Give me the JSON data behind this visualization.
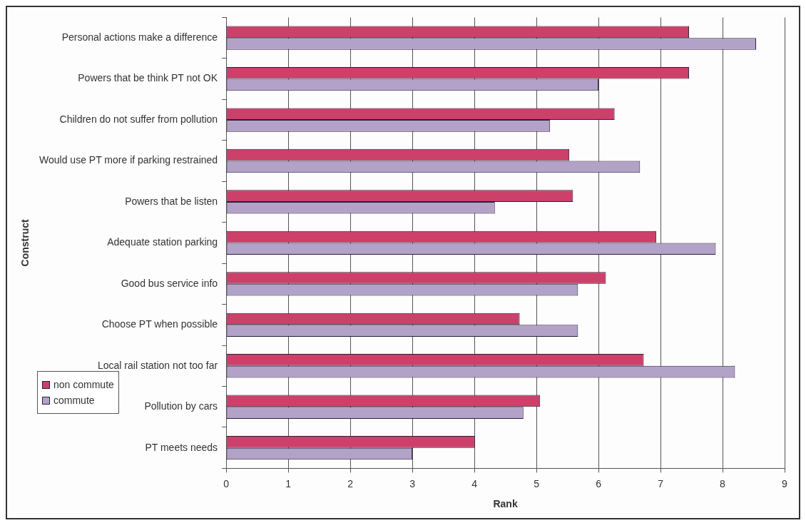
{
  "chart_data": {
    "type": "bar",
    "orientation": "horizontal",
    "xlabel": "Rank",
    "ylabel": "Construct",
    "categories": [
      "Personal actions make a difference",
      "Powers that be think PT not OK",
      "Children do not suffer from pollution",
      "Would use PT more if parking restrained",
      "Powers that be listen",
      "Adequate station parking",
      "Good bus service info",
      "Choose PT when possible",
      "Local rail station not too far",
      "Pollution by cars",
      "PT meets needs"
    ],
    "series": [
      {
        "name": "non commute",
        "color": "#cc4069",
        "values": [
          7.46,
          7.46,
          6.26,
          5.53,
          5.59,
          6.93,
          6.12,
          4.73,
          6.73,
          5.06,
          4.01
        ]
      },
      {
        "name": "commute",
        "color": "#b3a2c7",
        "values": [
          8.54,
          6.0,
          5.22,
          6.67,
          4.33,
          7.89,
          5.67,
          5.67,
          8.2,
          4.79,
          3.0
        ]
      }
    ],
    "xlim": [
      0,
      9
    ],
    "xticks": [
      0,
      1,
      2,
      3,
      4,
      5,
      6,
      7,
      8,
      9
    ],
    "grid": "x",
    "legend": "bottom left"
  }
}
